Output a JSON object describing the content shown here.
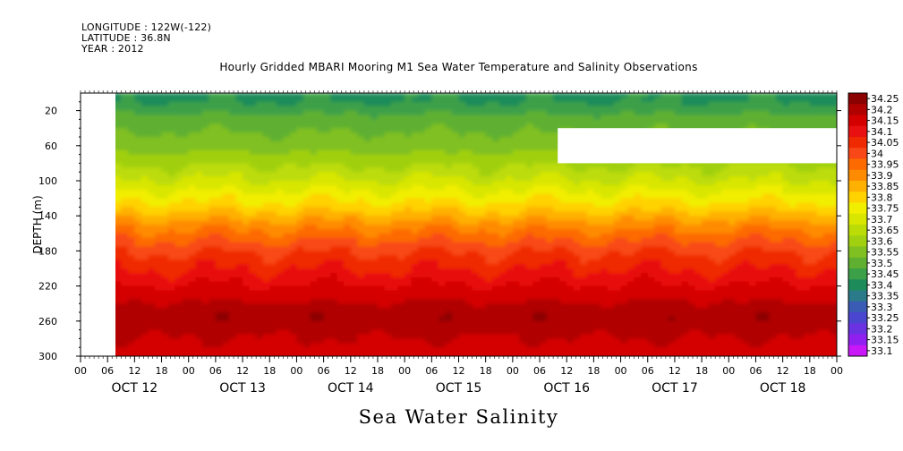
{
  "meta": {
    "longitude": "LONGITUDE : 122W(-122)",
    "latitude": "LATITUDE : 36.8N",
    "year": "YEAR : 2012"
  },
  "chart_data": {
    "type": "heatmap",
    "title": "Hourly Gridded MBARI Mooring M1 Sea Water Temperature and Salinity Observations",
    "subtitle": "Sea Water Salinity",
    "ylabel": "DEPTH (m)",
    "xlabel": "",
    "x_hour_ticks": [
      "00",
      "06",
      "12",
      "18",
      "00",
      "06",
      "12",
      "18",
      "00",
      "06",
      "12",
      "18",
      "00",
      "06",
      "12",
      "18",
      "00",
      "06",
      "12",
      "18",
      "00",
      "06",
      "12",
      "18",
      "00",
      "06",
      "12",
      "18",
      "00"
    ],
    "x_day_labels": [
      "OCT 12",
      "OCT 13",
      "OCT 14",
      "OCT 15",
      "OCT 16",
      "OCT 17",
      "OCT 18"
    ],
    "x_range_hours": [
      0,
      168
    ],
    "data_start_hour": 7,
    "y_ticks": [
      20,
      60,
      100,
      140,
      180,
      220,
      260,
      300
    ],
    "y_range": [
      300,
      0
    ],
    "missing_block": {
      "x_hours": [
        106,
        168
      ],
      "depth": [
        40,
        80
      ]
    },
    "colorbar_levels": [
      "34.25",
      "34.2",
      "34.15",
      "34.1",
      "34.05",
      "34",
      "33.95",
      "33.9",
      "33.85",
      "33.8",
      "33.75",
      "33.7",
      "33.65",
      "33.6",
      "33.55",
      "33.5",
      "33.45",
      "33.4",
      "33.35",
      "33.3",
      "33.25",
      "33.2",
      "33.15",
      "33.1"
    ],
    "colorbar_colors": [
      "#8b0000",
      "#b00000",
      "#d40000",
      "#e81010",
      "#f02a00",
      "#f84818",
      "#fd6a00",
      "#ff8c00",
      "#ffb000",
      "#ffd200",
      "#f2ee00",
      "#d8e600",
      "#bcdc08",
      "#a0d010",
      "#80c020",
      "#5fb030",
      "#3ca048",
      "#1e8c5a",
      "#2a7a8a",
      "#3a5cb4",
      "#4a46d0",
      "#6a32e0",
      "#9020f0",
      "#c818f8"
    ],
    "depth_profile": [
      {
        "depth": 10,
        "value": 33.42
      },
      {
        "depth": 30,
        "value": 33.5
      },
      {
        "depth": 60,
        "value": 33.55
      },
      {
        "depth": 100,
        "value": 33.68
      },
      {
        "depth": 130,
        "value": 33.8
      },
      {
        "depth": 150,
        "value": 33.9
      },
      {
        "depth": 180,
        "value": 34.02
      },
      {
        "depth": 210,
        "value": 34.1
      },
      {
        "depth": 240,
        "value": 34.18
      },
      {
        "depth": 255,
        "value": 34.22
      },
      {
        "depth": 275,
        "value": 34.18
      },
      {
        "depth": 300,
        "value": 34.15
      }
    ]
  }
}
